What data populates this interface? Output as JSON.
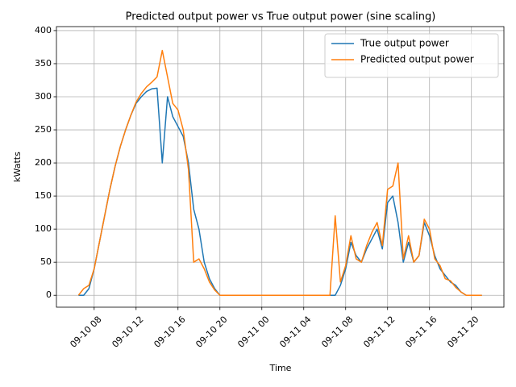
{
  "chart_data": {
    "type": "line",
    "title": "Predicted output power vs True output power (sine scaling)",
    "x_label": "Time",
    "y_label": "kWatts",
    "x": [
      "09-10 06:30",
      "09-10 07:00",
      "09-10 07:30",
      "09-10 08:00",
      "09-10 08:30",
      "09-10 09:00",
      "09-10 09:30",
      "09-10 10:00",
      "09-10 10:30",
      "09-10 11:00",
      "09-10 11:30",
      "09-10 12:00",
      "09-10 12:30",
      "09-10 13:00",
      "09-10 13:30",
      "09-10 14:00",
      "09-10 14:30",
      "09-10 15:00",
      "09-10 15:30",
      "09-10 16:00",
      "09-10 16:30",
      "09-10 17:00",
      "09-10 17:30",
      "09-10 18:00",
      "09-10 18:30",
      "09-10 19:00",
      "09-10 19:30",
      "09-10 20:00",
      "09-10 20:30",
      "09-10 21:00",
      "09-10 21:30",
      "09-10 22:00",
      "09-10 22:30",
      "09-10 23:00",
      "09-10 23:30",
      "09-11 00:00",
      "09-11 00:30",
      "09-11 01:00",
      "09-11 01:30",
      "09-11 02:00",
      "09-11 02:30",
      "09-11 03:00",
      "09-11 03:30",
      "09-11 04:00",
      "09-11 04:30",
      "09-11 05:00",
      "09-11 05:30",
      "09-11 06:00",
      "09-11 06:30",
      "09-11 07:00",
      "09-11 07:30",
      "09-11 08:00",
      "09-11 08:30",
      "09-11 09:00",
      "09-11 09:30",
      "09-11 10:00",
      "09-11 10:30",
      "09-11 11:00",
      "09-11 11:30",
      "09-11 12:00",
      "09-11 12:30",
      "09-11 13:00",
      "09-11 13:30",
      "09-11 14:00",
      "09-11 14:30",
      "09-11 15:00",
      "09-11 15:30",
      "09-11 16:00",
      "09-11 16:30",
      "09-11 17:00",
      "09-11 17:30",
      "09-11 18:00",
      "09-11 18:30",
      "09-11 19:00",
      "09-11 19:30",
      "09-11 20:00",
      "09-11 20:30",
      "09-11 21:00"
    ],
    "series": [
      {
        "name": "True output power",
        "color": "#1f77b4",
        "values": [
          0,
          0,
          10,
          40,
          80,
          120,
          160,
          195,
          225,
          250,
          272,
          290,
          300,
          308,
          312,
          313,
          200,
          300,
          270,
          255,
          240,
          200,
          130,
          100,
          50,
          25,
          10,
          0,
          0,
          0,
          0,
          0,
          0,
          0,
          0,
          0,
          0,
          0,
          0,
          0,
          0,
          0,
          0,
          0,
          0,
          0,
          0,
          0,
          0,
          0,
          15,
          40,
          80,
          60,
          50,
          70,
          85,
          100,
          70,
          140,
          150,
          110,
          50,
          80,
          50,
          60,
          110,
          90,
          60,
          40,
          30,
          20,
          15,
          5,
          0,
          0,
          0,
          0
        ]
      },
      {
        "name": "Predicted output power",
        "color": "#ff7f0e",
        "values": [
          0,
          10,
          15,
          40,
          80,
          120,
          160,
          195,
          225,
          250,
          272,
          292,
          305,
          315,
          322,
          330,
          370,
          330,
          290,
          280,
          250,
          190,
          50,
          55,
          40,
          20,
          8,
          0,
          0,
          0,
          0,
          0,
          0,
          0,
          0,
          0,
          0,
          0,
          0,
          0,
          0,
          0,
          0,
          0,
          0,
          0,
          0,
          0,
          0,
          120,
          20,
          45,
          90,
          55,
          50,
          75,
          95,
          110,
          75,
          160,
          165,
          200,
          55,
          90,
          50,
          60,
          115,
          100,
          55,
          45,
          25,
          22,
          12,
          5,
          0,
          0,
          0,
          0
        ]
      }
    ],
    "xlim": [
      "09-10 04:24",
      "09-11 23:06"
    ],
    "xticks": [
      {
        "value": "09-10 08:00",
        "label": "09-10 08"
      },
      {
        "value": "09-10 12:00",
        "label": "09-10 12"
      },
      {
        "value": "09-10 16:00",
        "label": "09-10 16"
      },
      {
        "value": "09-10 20:00",
        "label": "09-10 20"
      },
      {
        "value": "09-11 00:00",
        "label": "09-11 00"
      },
      {
        "value": "09-11 04:00",
        "label": "09-11 04"
      },
      {
        "value": "09-11 08:00",
        "label": "09-11 08"
      },
      {
        "value": "09-11 12:00",
        "label": "09-11 12"
      },
      {
        "value": "09-11 16:00",
        "label": "09-11 16"
      },
      {
        "value": "09-11 20:00",
        "label": "09-11 20"
      }
    ],
    "ylim": [
      -18,
      406
    ],
    "yticks": [
      0,
      50,
      100,
      150,
      200,
      250,
      300,
      350,
      400
    ],
    "grid": true,
    "legend": "upper right"
  }
}
